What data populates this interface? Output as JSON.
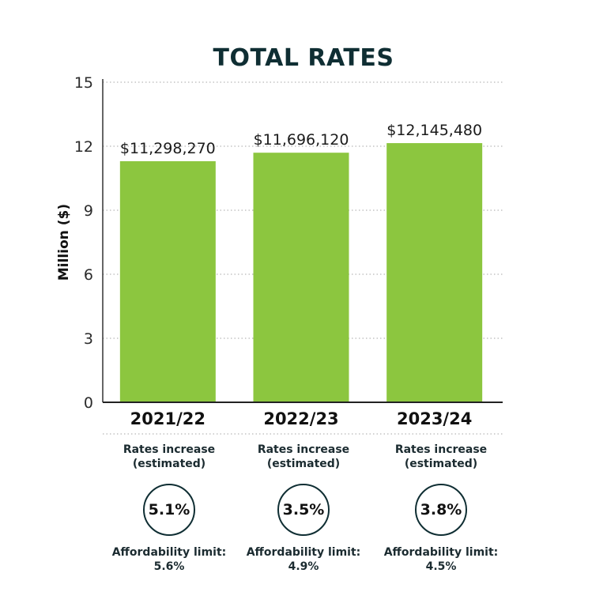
{
  "chart_data": {
    "type": "bar",
    "title": "TOTAL RATES",
    "ylabel": "Million ($)",
    "xlabel": "",
    "ylim": [
      0,
      15
    ],
    "yticks": [
      0,
      3,
      6,
      9,
      12,
      15
    ],
    "grid": true,
    "categories": [
      "2021/22",
      "2022/23",
      "2023/24"
    ],
    "values": [
      11.29827,
      11.69612,
      12.14548
    ],
    "value_labels": [
      "$11,298,270",
      "$11,696,120",
      "$12,145,480"
    ],
    "bar_color": "#8cc63f"
  },
  "info": [
    {
      "title_line1": "Rates increase",
      "title_line2": "(estimated)",
      "increase": "5.1%",
      "limit_label": "Affordability limit:",
      "limit_value": "5.6%"
    },
    {
      "title_line1": "Rates increase",
      "title_line2": "(estimated)",
      "increase": "3.5%",
      "limit_label": "Affordability limit:",
      "limit_value": "4.9%"
    },
    {
      "title_line1": "Rates increase",
      "title_line2": "(estimated)",
      "increase": "3.8%",
      "limit_label": "Affordability limit:",
      "limit_value": "4.5%"
    }
  ]
}
